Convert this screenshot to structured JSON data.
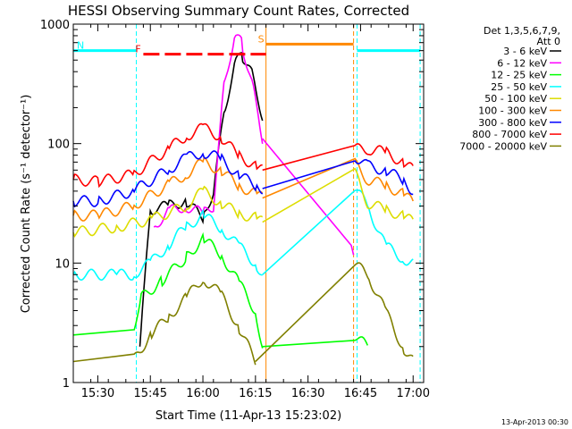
{
  "chart_data": {
    "type": "line",
    "title": "HESSI Observing Summary Count Rates, Corrected",
    "xlabel": "Start Time (11-Apr-13 15:23:02)",
    "ylabel": "Corrected Count Rate (s⁻¹ detector⁻¹)",
    "y_scale": "log",
    "ylim": [
      1,
      1000
    ],
    "xlim_minutes": [
      "15:23",
      "17:03"
    ],
    "x_ticks": [
      "15:30",
      "15:45",
      "16:00",
      "16:15",
      "16:30",
      "16:45",
      "17:00"
    ],
    "y_ticks": [
      "1",
      "10",
      "100",
      "1000"
    ],
    "grid": false,
    "legend_position": "top-right",
    "legend_header": [
      "Det 1,3,5,6,7,9,",
      "Att 0"
    ],
    "series": [
      {
        "name": "3 - 6 keV",
        "color": "#000000",
        "points": [
          [
            "15:42",
            2
          ],
          [
            "15:45",
            28
          ],
          [
            "15:50",
            30
          ],
          [
            "15:55",
            33
          ],
          [
            "16:00",
            24
          ],
          [
            "16:03",
            40
          ],
          [
            "16:06",
            180
          ],
          [
            "16:09",
            450
          ],
          [
            "16:11",
            560
          ],
          [
            "16:14",
            380
          ],
          [
            "16:17",
            170
          ]
        ]
      },
      {
        "name": "6 - 12 keV",
        "color": "#ff00ff",
        "points": [
          [
            "15:46",
            20
          ],
          [
            "15:50",
            27
          ],
          [
            "15:55",
            30
          ],
          [
            "16:00",
            26
          ],
          [
            "16:03",
            30
          ],
          [
            "16:06",
            300
          ],
          [
            "16:09",
            800
          ],
          [
            "16:11",
            700
          ],
          [
            "16:14",
            320
          ],
          [
            "16:17",
            110
          ],
          [
            "16:42",
            14
          ],
          [
            "16:43",
            12
          ]
        ]
      },
      {
        "name": "12 - 25 keV",
        "color": "#00ff00",
        "points": [
          [
            "15:23",
            2.5
          ],
          [
            "15:40",
            2.5
          ],
          [
            "15:42",
            5
          ],
          [
            "15:48",
            7
          ],
          [
            "15:55",
            11
          ],
          [
            "16:00",
            16
          ],
          [
            "16:05",
            12
          ],
          [
            "16:10",
            7
          ],
          [
            "16:15",
            4
          ],
          [
            "16:17",
            2
          ],
          [
            "16:43",
            2.5
          ],
          [
            "16:47",
            2
          ]
        ]
      },
      {
        "name": "25 - 50 keV",
        "color": "#00ffff",
        "points": [
          [
            "15:23",
            8
          ],
          [
            "15:35",
            8
          ],
          [
            "15:40",
            8
          ],
          [
            "15:45",
            10
          ],
          [
            "15:50",
            14
          ],
          [
            "15:55",
            20
          ],
          [
            "16:00",
            25
          ],
          [
            "16:05",
            20
          ],
          [
            "16:10",
            14
          ],
          [
            "16:15",
            10
          ],
          [
            "16:17",
            8
          ],
          [
            "16:43",
            45
          ],
          [
            "16:47",
            30
          ],
          [
            "16:52",
            14
          ],
          [
            "16:57",
            11
          ],
          [
            "17:00",
            10
          ]
        ]
      },
      {
        "name": "50 - 100 keV",
        "color": "#dddd00",
        "points": [
          [
            "15:23",
            18
          ],
          [
            "15:35",
            20
          ],
          [
            "15:45",
            23
          ],
          [
            "15:55",
            30
          ],
          [
            "16:00",
            40
          ],
          [
            "16:05",
            32
          ],
          [
            "16:10",
            26
          ],
          [
            "16:15",
            24
          ],
          [
            "16:17",
            22
          ],
          [
            "16:43",
            60
          ],
          [
            "16:47",
            32
          ],
          [
            "16:52",
            28
          ],
          [
            "16:57",
            25
          ],
          [
            "17:00",
            22
          ]
        ]
      },
      {
        "name": "100 - 300 keV",
        "color": "#ff8800",
        "points": [
          [
            "15:23",
            25
          ],
          [
            "15:30",
            25
          ],
          [
            "15:40",
            30
          ],
          [
            "15:50",
            45
          ],
          [
            "15:55",
            55
          ],
          [
            "16:00",
            70
          ],
          [
            "16:05",
            60
          ],
          [
            "16:10",
            45
          ],
          [
            "16:15",
            38
          ],
          [
            "16:17",
            35
          ],
          [
            "16:43",
            70
          ],
          [
            "16:47",
            50
          ],
          [
            "16:52",
            45
          ],
          [
            "16:57",
            38
          ],
          [
            "17:00",
            32
          ]
        ]
      },
      {
        "name": "300 - 800 keV",
        "color": "#0000ff",
        "points": [
          [
            "15:23",
            33
          ],
          [
            "15:30",
            33
          ],
          [
            "15:40",
            40
          ],
          [
            "15:50",
            60
          ],
          [
            "15:55",
            75
          ],
          [
            "16:00",
            85
          ],
          [
            "16:05",
            75
          ],
          [
            "16:10",
            55
          ],
          [
            "16:15",
            45
          ],
          [
            "16:17",
            42
          ],
          [
            "16:43",
            80
          ],
          [
            "16:47",
            65
          ],
          [
            "16:52",
            60
          ],
          [
            "16:57",
            50
          ],
          [
            "17:00",
            40
          ]
        ]
      },
      {
        "name": "800 - 7000 keV",
        "color": "#ff0000",
        "points": [
          [
            "15:23",
            50
          ],
          [
            "15:30",
            48
          ],
          [
            "15:40",
            55
          ],
          [
            "15:50",
            90
          ],
          [
            "15:55",
            115
          ],
          [
            "16:00",
            135
          ],
          [
            "16:05",
            115
          ],
          [
            "16:10",
            80
          ],
          [
            "16:15",
            65
          ],
          [
            "16:17",
            60
          ],
          [
            "16:43",
            90
          ],
          [
            "16:47",
            90
          ],
          [
            "16:52",
            85
          ],
          [
            "16:57",
            70
          ],
          [
            "17:00",
            60
          ]
        ]
      },
      {
        "name": "7000 - 20000 keV",
        "color": "#808000",
        "points": [
          [
            "15:23",
            1.5
          ],
          [
            "15:40",
            1.5
          ],
          [
            "15:45",
            2.5
          ],
          [
            "15:50",
            3.5
          ],
          [
            "15:55",
            5
          ],
          [
            "16:00",
            7.5
          ],
          [
            "16:05",
            5.5
          ],
          [
            "16:10",
            3
          ],
          [
            "16:15",
            1.5
          ],
          [
            "16:43",
            10
          ],
          [
            "16:47",
            8
          ],
          [
            "16:52",
            4
          ],
          [
            "16:57",
            2
          ],
          [
            "17:00",
            1.5
          ]
        ]
      }
    ],
    "flags": [
      {
        "label": "N",
        "color": "#00ffff",
        "y": 600,
        "segments": [
          [
            "15:23",
            "15:41"
          ],
          [
            "16:44",
            "17:02"
          ]
        ]
      },
      {
        "label": "F",
        "color": "#ff0000",
        "y": 560,
        "segments": [
          [
            "15:43",
            "16:18"
          ]
        ]
      },
      {
        "label": "S",
        "color": "#ff8800",
        "y": 680,
        "segments": [
          [
            "16:18",
            "16:43"
          ]
        ]
      }
    ],
    "timestamp": "13-Apr-2013 00:30"
  }
}
